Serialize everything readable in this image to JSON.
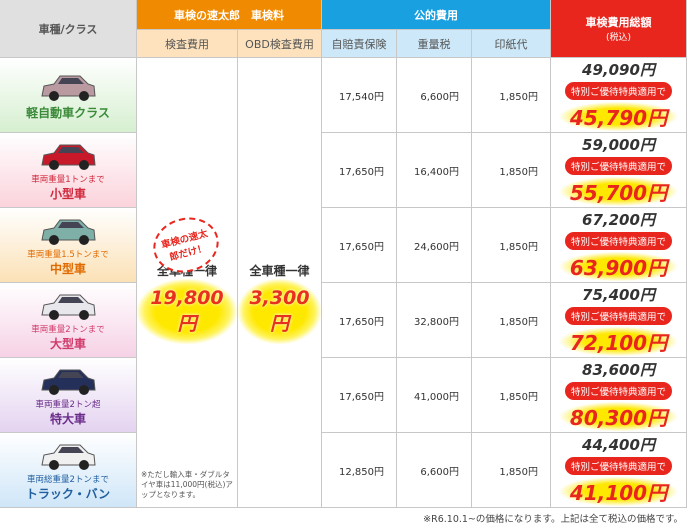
{
  "header": {
    "class": "車種/クラス",
    "shop": "車検の速太郎　車検料",
    "public": "公的費用",
    "total": "車検費用総額",
    "total_note": "(税込)",
    "inspection": "検査費用",
    "obd": "OBD検査費用",
    "insurance": "自賠責保険",
    "weight_tax": "重量税",
    "stamp": "印紙代"
  },
  "shared": {
    "inspection_label": "全車種一律",
    "inspection_price": "19,800円",
    "badge": "車検の速太郎だけ！",
    "note": "※ただし輸入車・ダブルタイヤ車は11,000円(税込)アップとなります。",
    "obd_label": "全車種一律",
    "obd_price": "3,300円",
    "offer": "特別ご優待特典適用で"
  },
  "rows": [
    {
      "name": "軽自動車クラス",
      "insurance": "17,540円",
      "weight_tax": "6,600円",
      "stamp": "1,850円",
      "regular": "49,090円",
      "special": "45,790円"
    },
    {
      "sub": "車両重量1トンまで",
      "name": "小型車",
      "insurance": "17,650円",
      "weight_tax": "16,400円",
      "stamp": "1,850円",
      "regular": "59,000円",
      "special": "55,700円"
    },
    {
      "sub": "車両重量1.5トンまで",
      "name": "中型車",
      "insurance": "17,650円",
      "weight_tax": "24,600円",
      "stamp": "1,850円",
      "regular": "67,200円",
      "special": "63,900円"
    },
    {
      "sub": "車両重量2トンまで",
      "name": "大型車",
      "insurance": "17,650円",
      "weight_tax": "32,800円",
      "stamp": "1,850円",
      "regular": "75,400円",
      "special": "72,100円"
    },
    {
      "sub": "車両重量2トン超",
      "name": "特大車",
      "insurance": "17,650円",
      "weight_tax": "41,000円",
      "stamp": "1,850円",
      "regular": "83,600円",
      "special": "80,300円"
    },
    {
      "sub": "車両総重量2トンまで",
      "name": "トラック・バン",
      "insurance": "12,850円",
      "weight_tax": "6,600円",
      "stamp": "1,850円",
      "regular": "44,400円",
      "special": "41,100円"
    }
  ],
  "footnote": "※R6.10.1~の価格になります。上記は全て税込の価格です。"
}
